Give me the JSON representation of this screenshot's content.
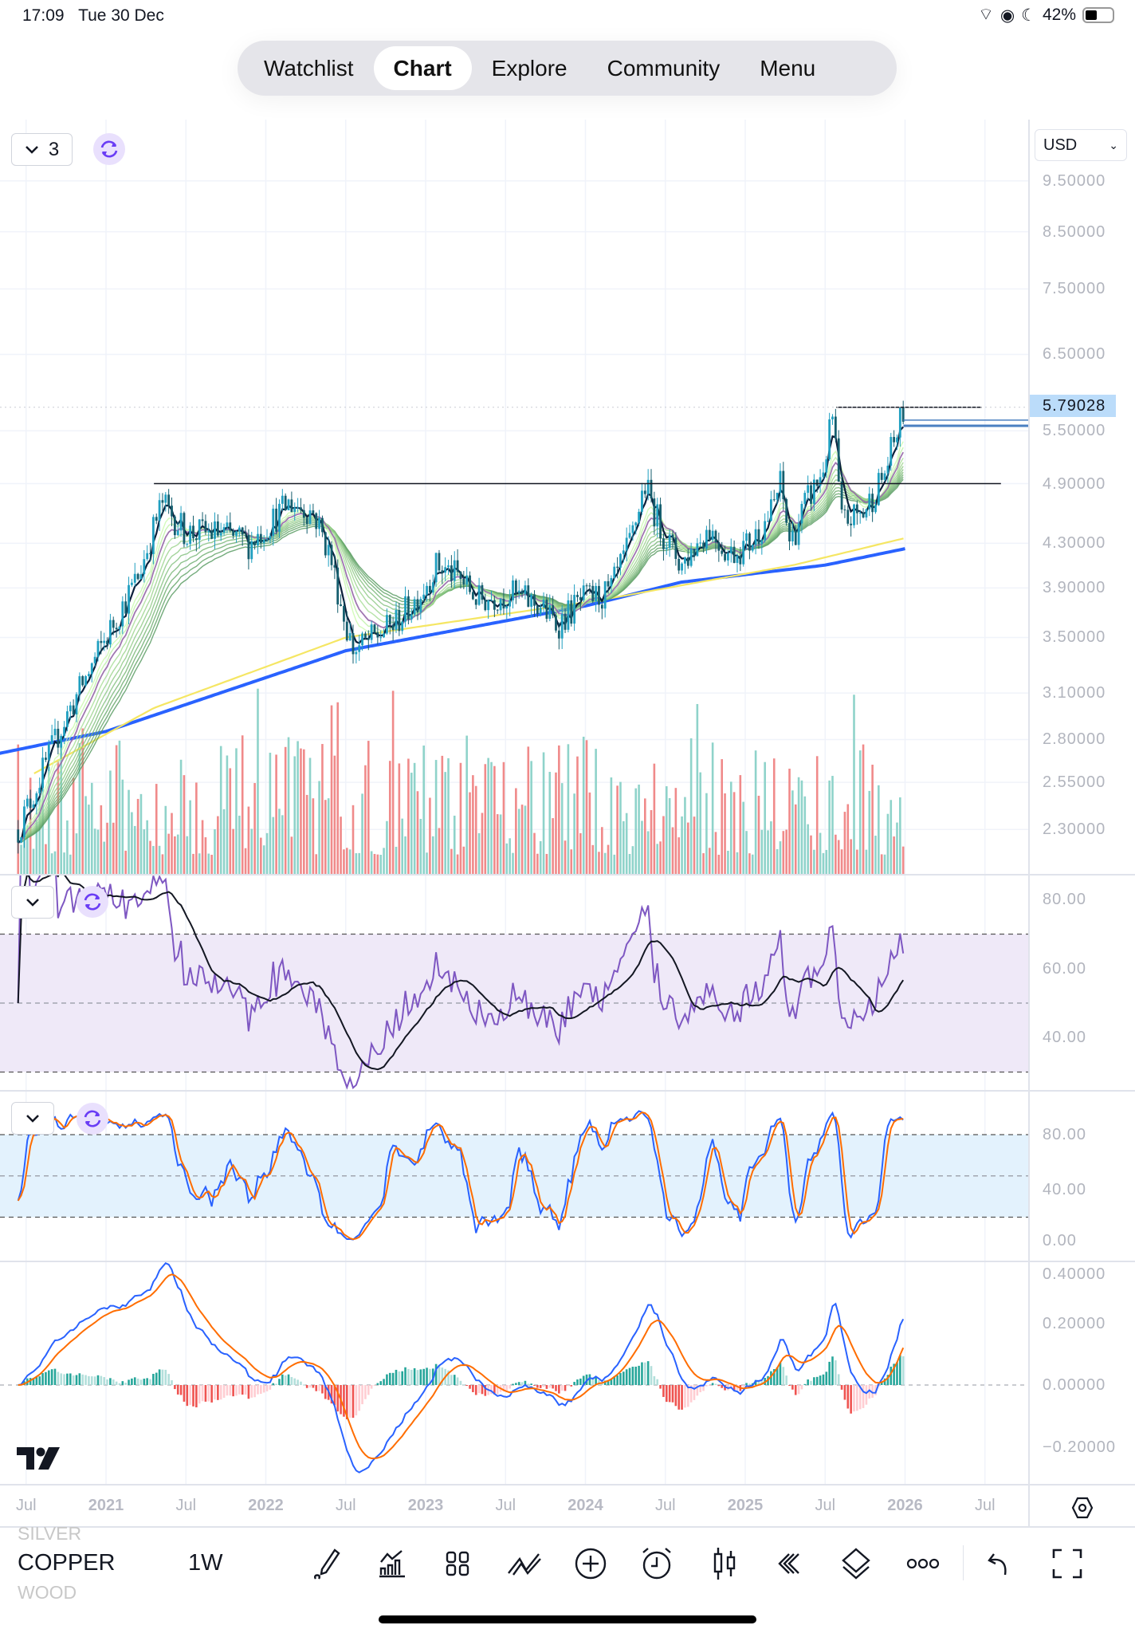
{
  "status_bar": {
    "time": "17:09",
    "date": "Tue 30 Dec",
    "battery": "42%"
  },
  "nav": {
    "items": [
      "Watchlist",
      "Chart",
      "Explore",
      "Community",
      "Menu"
    ],
    "active": "Chart"
  },
  "chart_controls": {
    "collapse_count": "3",
    "currency": "USD"
  },
  "toolbar": {
    "symbol_prev": "SILVER",
    "symbol": "COPPER",
    "symbol_next": "WOOD",
    "interval": "1W"
  },
  "colors": {
    "up": "#1f9fc0",
    "down": "#155e6e",
    "vol_up": "#8fd3ca",
    "vol_down": "#f08a8a",
    "ma_long": "#2962ff",
    "ma_yellow": "#f5e663",
    "rsi": "#7e57c2",
    "stoch_k": "#2962ff",
    "stoch_d": "#ff6d00",
    "macd": "#2962ff",
    "signal": "#ff6d00"
  },
  "chart_data": {
    "type": "candlestick",
    "symbol": "COPPER",
    "interval": "1W",
    "last_price": "5.79028",
    "price_axis": {
      "scale": "log",
      "ticks": [
        "9.50000",
        "8.50000",
        "7.50000",
        "6.50000",
        "5.50000",
        "4.90000",
        "4.30000",
        "3.90000",
        "3.50000",
        "3.10000",
        "2.80000",
        "2.55000",
        "2.30000"
      ]
    },
    "time_axis": [
      {
        "t": 2020.5,
        "label": "Jul"
      },
      {
        "t": 2021.0,
        "label": "2021"
      },
      {
        "t": 2021.5,
        "label": "Jul"
      },
      {
        "t": 2022.0,
        "label": "2022"
      },
      {
        "t": 2022.5,
        "label": "Jul"
      },
      {
        "t": 2023.0,
        "label": "2023"
      },
      {
        "t": 2023.5,
        "label": "Jul"
      },
      {
        "t": 2024.0,
        "label": "2024"
      },
      {
        "t": 2024.5,
        "label": "Jul"
      },
      {
        "t": 2025.0,
        "label": "2025"
      },
      {
        "t": 2025.5,
        "label": "Jul"
      },
      {
        "t": 2026.0,
        "label": "2026"
      },
      {
        "t": 2026.5,
        "label": "Jul"
      }
    ],
    "close_anchors": [
      [
        2020.45,
        2.3
      ],
      [
        2020.73,
        2.9
      ],
      [
        2021.0,
        3.5
      ],
      [
        2021.2,
        4.0
      ],
      [
        2021.35,
        4.7
      ],
      [
        2021.5,
        4.4
      ],
      [
        2021.7,
        4.4
      ],
      [
        2021.9,
        4.3
      ],
      [
        2022.15,
        4.7
      ],
      [
        2022.3,
        4.6
      ],
      [
        2022.4,
        4.2
      ],
      [
        2022.5,
        3.6
      ],
      [
        2022.55,
        3.4
      ],
      [
        2022.68,
        3.5
      ],
      [
        2022.8,
        3.6
      ],
      [
        2022.94,
        3.8
      ],
      [
        2023.07,
        4.1
      ],
      [
        2023.2,
        4.0
      ],
      [
        2023.33,
        3.8
      ],
      [
        2023.53,
        3.85
      ],
      [
        2023.72,
        3.75
      ],
      [
        2023.82,
        3.6
      ],
      [
        2023.98,
        3.8
      ],
      [
        2024.15,
        3.85
      ],
      [
        2024.28,
        4.3
      ],
      [
        2024.37,
        4.9
      ],
      [
        2024.47,
        4.45
      ],
      [
        2024.6,
        4.1
      ],
      [
        2024.77,
        4.45
      ],
      [
        2024.9,
        4.2
      ],
      [
        2025.03,
        4.3
      ],
      [
        2025.16,
        4.6
      ],
      [
        2025.22,
        4.9
      ],
      [
        2025.28,
        4.3
      ],
      [
        2025.38,
        4.7
      ],
      [
        2025.48,
        5.0
      ],
      [
        2025.55,
        5.7
      ],
      [
        2025.6,
        4.5
      ],
      [
        2025.74,
        4.6
      ],
      [
        2025.87,
        5.0
      ],
      [
        2025.99,
        5.75
      ]
    ],
    "long_ma": [
      [
        2020.3,
        2.71
      ],
      [
        2021.0,
        2.85
      ],
      [
        2022.5,
        3.4
      ],
      [
        2024.0,
        3.75
      ],
      [
        2024.6,
        3.95
      ],
      [
        2025.5,
        4.1
      ],
      [
        2026.0,
        4.25
      ]
    ],
    "yellow_ma": [
      [
        2020.55,
        2.6
      ],
      [
        2021.3,
        3.0
      ],
      [
        2022.5,
        3.5
      ],
      [
        2024.1,
        3.8
      ],
      [
        2025.3,
        4.1
      ],
      [
        2026.0,
        4.35
      ]
    ],
    "horizontal_levels": [
      {
        "price": 4.9,
        "from": 2021.3,
        "to": 2026.6
      },
      {
        "price": 5.79,
        "from": 2025.57,
        "to": 2026.48
      }
    ],
    "rsi": {
      "ticks": [
        "80.00",
        "60.00",
        "40.00"
      ],
      "bands": [
        70,
        50,
        30
      ]
    },
    "stoch": {
      "ticks": [
        "80.00",
        "40.00",
        "0.00"
      ],
      "bands": [
        80,
        50,
        20
      ]
    },
    "macd": {
      "ticks": [
        "0.40000",
        "0.20000",
        "0.00000",
        "−0.20000"
      ]
    }
  }
}
